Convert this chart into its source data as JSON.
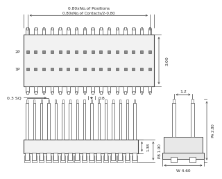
{
  "bg_color": "#ffffff",
  "line_color": "#444444",
  "dim_color": "#444444",
  "text_color": "#222222",
  "n_pins": 16,
  "top_view": {
    "dim1_text": "0.80xNo.of Positions",
    "dim2_text": "0.80xNo.of Contacts/2-0.80",
    "label_2p": "2P",
    "label_1p": "1P",
    "dim_right_text": "3.00"
  },
  "side_view": {
    "dim_sq_text": "0.3 SQ",
    "dim_08_text": "0.8",
    "dim_138_text": "1.38",
    "dim_pb_text": "PB 1.90"
  },
  "right_view": {
    "dim_12_text": "1.2",
    "dim_pa_text": "PA 2.80",
    "dim_w_text": "W 4.60"
  }
}
